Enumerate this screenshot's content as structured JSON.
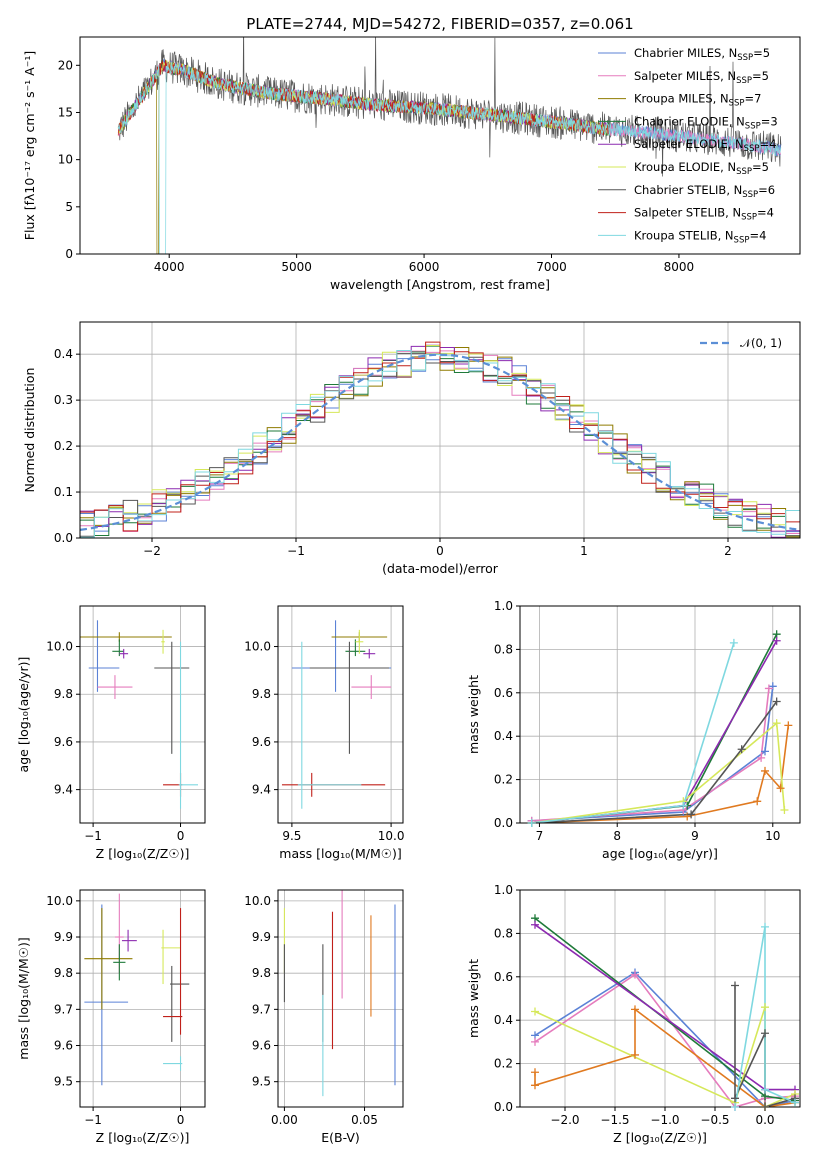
{
  "colors": {
    "Chabrier MILES": "#5b82d6",
    "Salpeter MILES": "#e57cbd",
    "Kroupa MILES": "#8f7b00",
    "Chabrier ELODIE": "#1f7a3a",
    "Salpeter ELODIE": "#8c2ab0",
    "Kroupa ELODIE": "#d6e85a",
    "Chabrier STELIB": "#555555",
    "Salpeter STELIB": "#c0201a",
    "Kroupa STELIB": "#7fd8e0",
    "orange": "#e07a20",
    "normal": "#5b8fd6"
  },
  "chart_data": [
    {
      "id": "spectrum",
      "type": "line",
      "title": "PLATE=2744, MJD=54272, FIBERID=0357, z=0.061",
      "xlabel": "wavelength [Angstrom, rest frame]",
      "ylabel": "Flux [fλ10⁻¹⁷ erg cm⁻² s⁻¹ A⁻¹]",
      "xlim": [
        3300,
        8950
      ],
      "ylim": [
        0,
        23
      ],
      "xticks": [
        4000,
        5000,
        6000,
        7000,
        8000
      ],
      "yticks": [
        0,
        5,
        10,
        15,
        20
      ],
      "legend": [
        {
          "label": "Chabrier MILES, N",
          "sub": "SSP",
          "tail": "=5"
        },
        {
          "label": "Salpeter MILES, N",
          "sub": "SSP",
          "tail": "=5"
        },
        {
          "label": "Kroupa MILES, N",
          "sub": "SSP",
          "tail": "=7"
        },
        {
          "label": "Chabrier ELODIE, N",
          "sub": "SSP",
          "tail": "=3"
        },
        {
          "label": "Salpeter ELODIE, N",
          "sub": "SSP",
          "tail": "=4"
        },
        {
          "label": "Kroupa ELODIE, N",
          "sub": "SSP",
          "tail": "=5"
        },
        {
          "label": "Chabrier STELIB, N",
          "sub": "SSP",
          "tail": "=6"
        },
        {
          "label": "Salpeter STELIB, N",
          "sub": "SSP",
          "tail": "=4"
        },
        {
          "label": "Kroupa STELIB, N",
          "sub": "SSP",
          "tail": "=4"
        }
      ],
      "continuum": [
        [
          3600,
          13
        ],
        [
          3800,
          17
        ],
        [
          3950,
          20
        ],
        [
          4100,
          19.5
        ],
        [
          4400,
          18
        ],
        [
          4800,
          17
        ],
        [
          5200,
          16.5
        ],
        [
          5600,
          15.8
        ],
        [
          6000,
          15.5
        ],
        [
          6500,
          14.8
        ],
        [
          7000,
          14
        ],
        [
          7400,
          13.3
        ],
        [
          7800,
          12.8
        ],
        [
          8200,
          12.2
        ],
        [
          8600,
          11.5
        ],
        [
          8800,
          11
        ]
      ]
    },
    {
      "id": "residuals",
      "type": "histogram",
      "xlabel": "(data-model)/error",
      "ylabel": "Normed distribution",
      "xlim": [
        -2.5,
        2.5
      ],
      "ylim": [
        0,
        0.47
      ],
      "xticks": [
        -2,
        -1,
        0,
        1,
        2
      ],
      "yticks": [
        0.0,
        0.1,
        0.2,
        0.3,
        0.4
      ],
      "legend": "𝒩(0, 1)"
    },
    {
      "id": "age_vs_Z",
      "type": "errorbar",
      "xlabel": "Z [log₁₀(Z/Z☉)]",
      "ylabel": "age  [log₁₀(age/yr)]",
      "xlim": [
        -1.15,
        0.28
      ],
      "ylim": [
        9.26,
        10.17
      ],
      "xticks": [
        -1,
        0
      ],
      "yticks": [
        9.4,
        9.6,
        9.8,
        10.0
      ],
      "points": [
        {
          "c": "Chabrier MILES",
          "x": -0.95,
          "xe": [
            0.1,
            0.25
          ],
          "y": 9.91,
          "ye": [
            0.1,
            0.2
          ]
        },
        {
          "c": "Salpeter MILES",
          "x": -0.75,
          "xe": [
            0.2,
            0.2
          ],
          "y": 9.83,
          "ye": [
            0.05,
            0.05
          ]
        },
        {
          "c": "Kroupa MILES",
          "x": -0.7,
          "xe": [
            0.6,
            0.6
          ],
          "y": 10.04,
          "ye": [
            0.02,
            0.02
          ]
        },
        {
          "c": "Chabrier ELODIE",
          "x": -0.7,
          "xe": [
            0.08,
            0.05
          ],
          "y": 9.98,
          "ye": [
            0.02,
            0.05
          ]
        },
        {
          "c": "Salpeter ELODIE",
          "x": -0.65,
          "xe": [
            0.05,
            0.05
          ],
          "y": 9.97,
          "ye": [
            0.02,
            0.02
          ]
        },
        {
          "c": "Kroupa ELODIE",
          "x": -0.2,
          "xe": [
            0.02,
            0.02
          ],
          "y": 10.02,
          "ye": [
            0.05,
            0.05
          ]
        },
        {
          "c": "Chabrier STELIB",
          "x": -0.1,
          "xe": [
            0.2,
            0.2
          ],
          "y": 9.91,
          "ye": [
            0.36,
            0.11
          ]
        },
        {
          "c": "Salpeter STELIB",
          "x": 0.0,
          "xe": [
            0.2,
            0.02
          ],
          "y": 9.42,
          "ye": [
            0.05,
            0.05
          ]
        },
        {
          "c": "Kroupa STELIB",
          "x": 0.0,
          "xe": [
            0.02,
            0.2
          ],
          "y": 9.42,
          "ye": [
            0.1,
            0.6
          ]
        }
      ]
    },
    {
      "id": "age_vs_mass",
      "type": "errorbar",
      "xlabel": "mass [log₁₀(M/M☉)]",
      "ylabel": "",
      "xlim": [
        9.43,
        10.06
      ],
      "ylim": [
        9.26,
        10.17
      ],
      "xticks": [
        9.5,
        10.0
      ],
      "yticks": [
        9.4,
        9.6,
        9.8,
        10.0
      ],
      "points": [
        {
          "c": "Chabrier MILES",
          "x": 9.72,
          "xe": [
            0.22,
            0.28
          ],
          "y": 9.91,
          "ye": [
            0.1,
            0.2
          ]
        },
        {
          "c": "Salpeter MILES",
          "x": 9.9,
          "xe": [
            0.1,
            0.1
          ],
          "y": 9.83,
          "ye": [
            0.05,
            0.05
          ]
        },
        {
          "c": "Kroupa MILES",
          "x": 9.84,
          "xe": [
            0.14,
            0.14
          ],
          "y": 10.04,
          "ye": [
            0.02,
            0.02
          ]
        },
        {
          "c": "Chabrier ELODIE",
          "x": 9.82,
          "xe": [
            0.05,
            0.05
          ],
          "y": 9.98,
          "ye": [
            0.02,
            0.05
          ]
        },
        {
          "c": "Salpeter ELODIE",
          "x": 9.89,
          "xe": [
            0.03,
            0.03
          ],
          "y": 9.97,
          "ye": [
            0.02,
            0.02
          ]
        },
        {
          "c": "Kroupa ELODIE",
          "x": 9.84,
          "xe": [
            0.02,
            0.02
          ],
          "y": 10.02,
          "ye": [
            0.05,
            0.05
          ]
        },
        {
          "c": "Chabrier STELIB",
          "x": 9.79,
          "xe": [
            0.2,
            0.2
          ],
          "y": 9.91,
          "ye": [
            0.36,
            0.11
          ]
        },
        {
          "c": "Salpeter STELIB",
          "x": 9.6,
          "xe": [
            0.15,
            0.37
          ],
          "y": 9.42,
          "ye": [
            0.05,
            0.05
          ]
        },
        {
          "c": "Kroupa STELIB",
          "x": 9.55,
          "xe": [
            0.02,
            0.3
          ],
          "y": 9.42,
          "ye": [
            0.1,
            0.6
          ]
        }
      ]
    },
    {
      "id": "massweight_vs_age",
      "type": "line",
      "xlabel": "age  [log₁₀(age/yr)]",
      "ylabel": "mass weight",
      "xlim": [
        6.75,
        10.35
      ],
      "ylim": [
        0,
        1.0
      ],
      "xticks": [
        7,
        8,
        9,
        10
      ],
      "yticks": [
        0.0,
        0.2,
        0.4,
        0.6,
        0.8,
        1.0
      ],
      "series": [
        {
          "c": "Chabrier MILES",
          "x": [
            6.9,
            8.85,
            9.9,
            10.0
          ],
          "y": [
            0.01,
            0.05,
            0.33,
            0.63
          ]
        },
        {
          "c": "Salpeter MILES",
          "x": [
            6.9,
            8.85,
            9.85,
            9.95
          ],
          "y": [
            0.01,
            0.06,
            0.3,
            0.62
          ]
        },
        {
          "c": "orange",
          "x": [
            6.9,
            8.9,
            9.8,
            9.9,
            10.1,
            10.2
          ],
          "y": [
            0.0,
            0.03,
            0.1,
            0.24,
            0.16,
            0.45
          ]
        },
        {
          "c": "Chabrier ELODIE",
          "x": [
            6.9,
            8.9,
            10.05
          ],
          "y": [
            0.0,
            0.08,
            0.87
          ]
        },
        {
          "c": "Salpeter ELODIE",
          "x": [
            6.9,
            8.85,
            10.05
          ],
          "y": [
            0.0,
            0.08,
            0.84
          ]
        },
        {
          "c": "Kroupa ELODIE",
          "x": [
            6.9,
            8.85,
            10.05,
            10.15
          ],
          "y": [
            0.0,
            0.1,
            0.46,
            0.06
          ]
        },
        {
          "c": "Chabrier STELIB",
          "x": [
            6.9,
            8.95,
            9.6,
            10.05
          ],
          "y": [
            0.0,
            0.04,
            0.34,
            0.56
          ]
        },
        {
          "c": "Kroupa STELIB",
          "x": [
            6.9,
            8.85,
            9.5
          ],
          "y": [
            0.0,
            0.08,
            0.83
          ]
        }
      ]
    },
    {
      "id": "mass_vs_Z",
      "type": "errorbar",
      "xlabel": "Z [log₁₀(Z/Z☉)]",
      "ylabel": "mass [log₁₀(M/M☉)]",
      "xlim": [
        -1.15,
        0.28
      ],
      "ylim": [
        9.43,
        10.03
      ],
      "xticks": [
        -1,
        0
      ],
      "yticks": [
        9.5,
        9.6,
        9.7,
        9.8,
        9.9,
        10.0
      ],
      "points": [
        {
          "c": "Chabrier MILES",
          "x": -0.9,
          "xe": [
            0.2,
            0.3
          ],
          "y": 9.72,
          "ye": [
            0.23,
            0.27
          ]
        },
        {
          "c": "Salpeter MILES",
          "x": -0.7,
          "xe": [
            0.05,
            0.05
          ],
          "y": 9.9,
          "ye": [
            0.1,
            0.12
          ]
        },
        {
          "c": "Kroupa MILES",
          "x": -0.9,
          "xe": [
            0.2,
            0.35
          ],
          "y": 9.84,
          "ye": [
            0.14,
            0.14
          ]
        },
        {
          "c": "Chabrier ELODIE",
          "x": -0.7,
          "xe": [
            0.07,
            0.07
          ],
          "y": 9.83,
          "ye": [
            0.05,
            0.05
          ]
        },
        {
          "c": "Salpeter ELODIE",
          "x": -0.6,
          "xe": [
            0.07,
            0.1
          ],
          "y": 9.89,
          "ye": [
            0.03,
            0.03
          ]
        },
        {
          "c": "Kroupa ELODIE",
          "x": -0.2,
          "xe": [
            0.02,
            0.2
          ],
          "y": 9.87,
          "ye": [
            0.1,
            0.05
          ]
        },
        {
          "c": "Chabrier STELIB",
          "x": -0.1,
          "xe": [
            0.02,
            0.2
          ],
          "y": 9.77,
          "ye": [
            0.16,
            0.05
          ]
        },
        {
          "c": "Salpeter STELIB",
          "x": 0.0,
          "xe": [
            0.2,
            0.02
          ],
          "y": 9.68,
          "ye": [
            0.05,
            0.3
          ]
        },
        {
          "c": "Kroupa STELIB",
          "x": 0.0,
          "xe": [
            0.2,
            0.02
          ],
          "y": 9.55,
          "ye": [
            0.02,
            0.02
          ]
        }
      ]
    },
    {
      "id": "mass_vs_EBV",
      "type": "errorbar",
      "xlabel": "E(B-V)",
      "ylabel": "",
      "xlim": [
        -0.004,
        0.074
      ],
      "ylim": [
        9.43,
        10.03
      ],
      "xticks": [
        0.0,
        0.05
      ],
      "yticks": [
        9.5,
        9.6,
        9.7,
        9.8,
        9.9,
        10.0
      ],
      "points": [
        {
          "c": "Kroupa ELODIE",
          "x": 0.0,
          "y": 9.9,
          "ye": [
            0.1,
            0.08
          ]
        },
        {
          "c": "Chabrier STELIB",
          "x": 0.0,
          "y": 9.8,
          "ye": [
            0.08,
            0.08
          ]
        },
        {
          "c": "Chabrier STELIB",
          "x": 0.024,
          "y": 9.77,
          "ye": [
            0.16,
            0.11
          ]
        },
        {
          "c": "Kroupa STELIB",
          "x": 0.024,
          "y": 9.6,
          "ye": [
            0.14,
            0.14
          ]
        },
        {
          "c": "Salpeter STELIB",
          "x": 0.03,
          "y": 9.78,
          "ye": [
            0.19,
            0.19
          ]
        },
        {
          "c": "Salpeter MILES",
          "x": 0.036,
          "y": 9.88,
          "ye": [
            0.15,
            0.15
          ]
        },
        {
          "c": "orange",
          "x": 0.054,
          "y": 9.82,
          "ye": [
            0.14,
            0.14
          ]
        },
        {
          "c": "Chabrier MILES",
          "x": 0.069,
          "y": 9.74,
          "ye": [
            0.25,
            0.25
          ]
        }
      ]
    },
    {
      "id": "massweight_vs_Z",
      "type": "line",
      "xlabel": "Z [log₁₀(Z/Z☉)]",
      "ylabel": "mass weight",
      "xlim": [
        -2.45,
        0.35
      ],
      "ylim": [
        0,
        1.0
      ],
      "xticks": [
        -2.0,
        -1.5,
        -1.0,
        -0.5,
        0.0
      ],
      "yticks": [
        0.0,
        0.2,
        0.4,
        0.6,
        0.8,
        1.0
      ],
      "series": [
        {
          "c": "Chabrier MILES",
          "x": [
            -2.3,
            -1.3,
            0.0,
            0.3
          ],
          "y": [
            0.33,
            0.62,
            0.0,
            0.03
          ]
        },
        {
          "c": "Salpeter MILES",
          "x": [
            -2.3,
            -1.3,
            -0.3,
            0.0,
            0.3
          ],
          "y": [
            0.3,
            0.61,
            0.0,
            0.04,
            0.05
          ]
        },
        {
          "c": "orange",
          "x": [
            -2.3,
            -2.3,
            -1.3,
            -1.3,
            0.0,
            0.3
          ],
          "y": [
            0.16,
            0.1,
            0.24,
            0.45,
            0.0,
            0.02
          ]
        },
        {
          "c": "Chabrier ELODIE",
          "x": [
            -2.3,
            0.0,
            0.3
          ],
          "y": [
            0.87,
            0.05,
            0.03
          ]
        },
        {
          "c": "Salpeter ELODIE",
          "x": [
            -2.3,
            0.0,
            0.3
          ],
          "y": [
            0.84,
            0.08,
            0.08
          ]
        },
        {
          "c": "Kroupa ELODIE",
          "x": [
            -2.3,
            -0.3,
            0.0,
            0.0,
            0.3
          ],
          "y": [
            0.44,
            0.02,
            0.46,
            0.0,
            0.06
          ]
        },
        {
          "c": "Chabrier STELIB",
          "x": [
            -0.3,
            -0.3,
            0.0,
            0.0,
            0.3
          ],
          "y": [
            0.56,
            0.04,
            0.34,
            0.0,
            0.04
          ]
        },
        {
          "c": "Kroupa STELIB",
          "x": [
            -0.3,
            0.0,
            0.0,
            0.3
          ],
          "y": [
            0.0,
            0.83,
            0.08,
            0.02
          ]
        }
      ]
    }
  ]
}
